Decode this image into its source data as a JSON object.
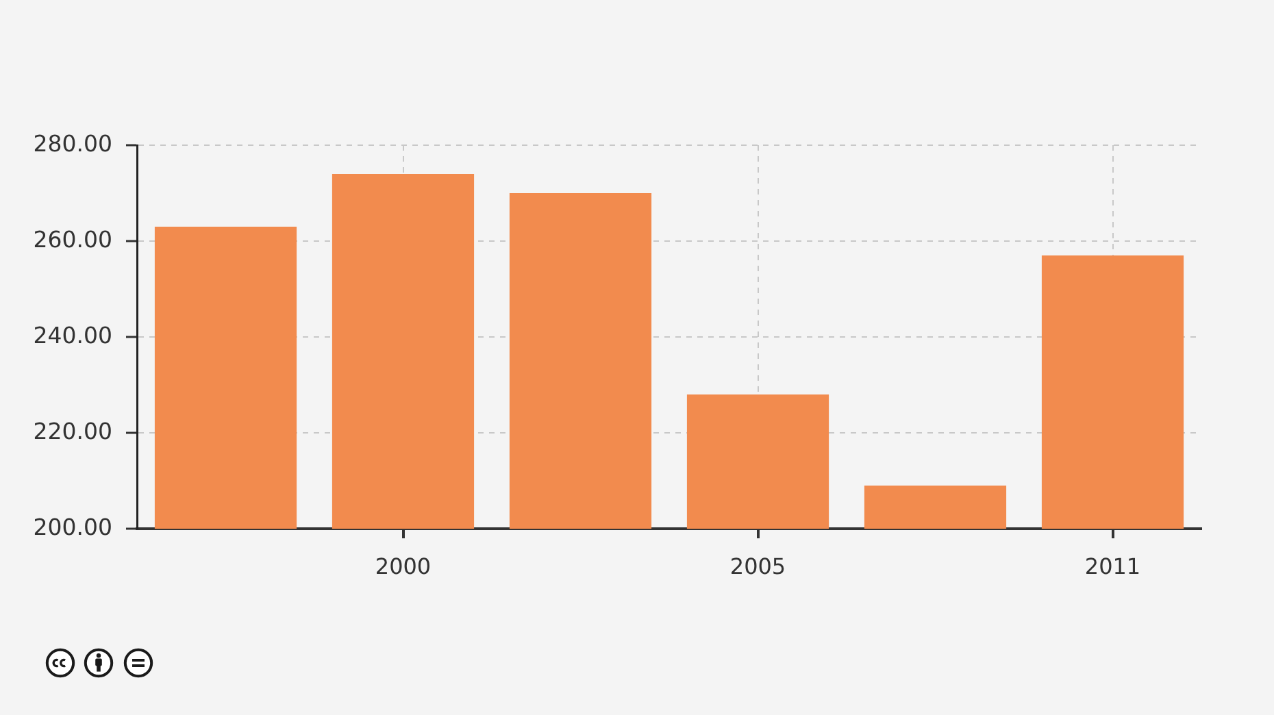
{
  "chart_data": {
    "type": "bar",
    "categories": [
      null,
      "2000",
      null,
      "2005",
      null,
      "2011"
    ],
    "values": [
      263,
      274,
      270,
      228,
      209,
      257
    ],
    "color": "#f28b4e",
    "ylim": [
      200,
      280
    ],
    "yticks": [
      {
        "value": 200,
        "label": "200.00"
      },
      {
        "value": 220,
        "label": "220.00"
      },
      {
        "value": 240,
        "label": "240.00"
      },
      {
        "value": 260,
        "label": "260.00"
      },
      {
        "value": 280,
        "label": "280.00"
      }
    ],
    "grid": true,
    "legend": false
  }
}
